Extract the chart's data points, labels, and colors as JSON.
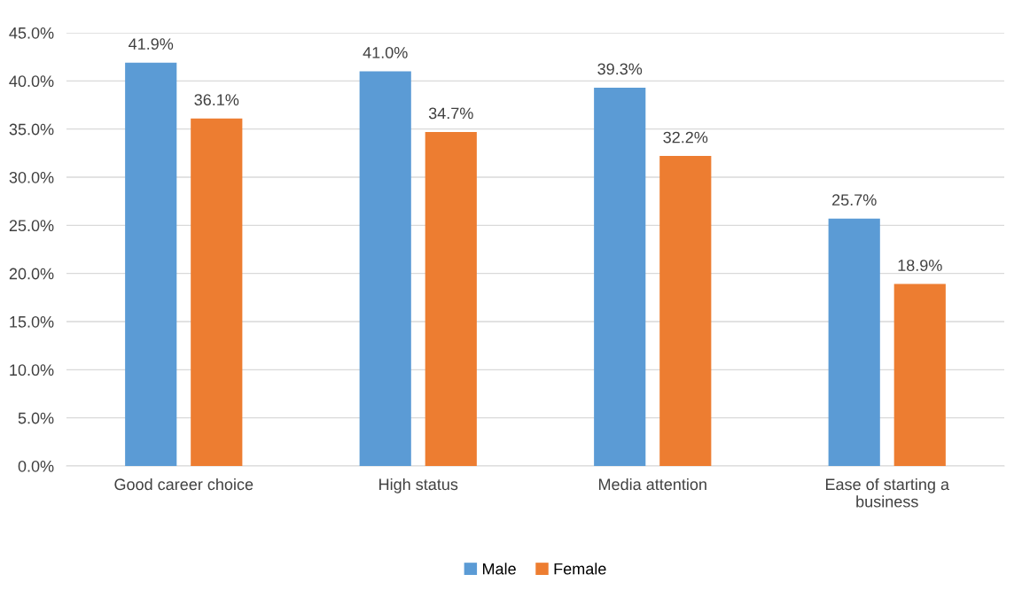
{
  "chart_data": {
    "type": "bar",
    "categories": [
      "Good career choice",
      "High status",
      "Media attention",
      "Ease of starting a\nbusiness"
    ],
    "series": [
      {
        "name": "Male",
        "color": "#5b9bd5",
        "values": [
          41.9,
          41.0,
          39.3,
          25.7
        ],
        "value_labels": [
          "41.9%",
          "41.0%",
          "39.3%",
          "25.7%"
        ]
      },
      {
        "name": "Female",
        "color": "#ed7d31",
        "values": [
          36.1,
          34.7,
          32.2,
          18.9
        ],
        "value_labels": [
          "36.1%",
          "34.7%",
          "32.2%",
          "18.9%"
        ]
      }
    ],
    "ylim": [
      0,
      45
    ],
    "yticks": [
      {
        "value": 0,
        "label": "0.0%"
      },
      {
        "value": 5,
        "label": "5.0%"
      },
      {
        "value": 10,
        "label": "10.0%"
      },
      {
        "value": 15,
        "label": "15.0%"
      },
      {
        "value": 20,
        "label": "20.0%"
      },
      {
        "value": 25,
        "label": "25.0%"
      },
      {
        "value": 30,
        "label": "30.0%"
      },
      {
        "value": 35,
        "label": "35.0%"
      },
      {
        "value": 40,
        "label": "40.0%"
      },
      {
        "value": 45,
        "label": "45.0%"
      }
    ],
    "grid": "y",
    "legend": "bottom"
  }
}
